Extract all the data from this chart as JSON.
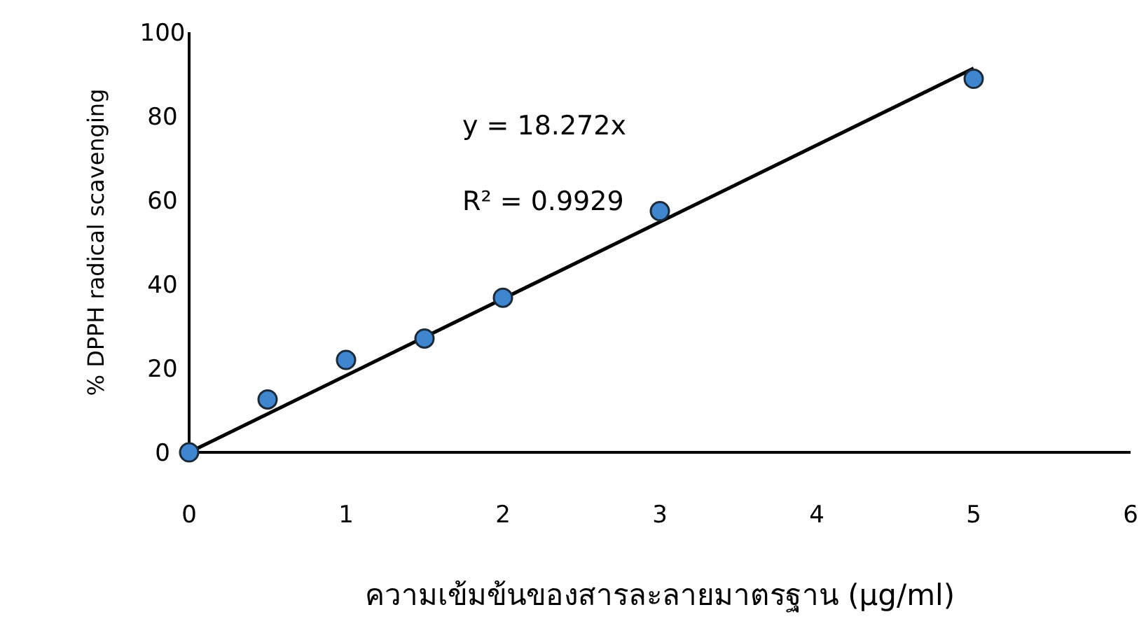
{
  "chart_data": {
    "type": "scatter",
    "xlabel": "ความเข้มข้นของสารละลายมาตรฐาน (µg/ml)",
    "ylabel": "% DPPH radical scavenging",
    "xlim": [
      0,
      6
    ],
    "xticks": [
      0,
      1,
      2,
      3,
      4,
      5,
      6
    ],
    "ylim": [
      0,
      100
    ],
    "yticks": [
      0,
      20,
      40,
      60,
      80,
      100
    ],
    "grid": false,
    "marker": "circle",
    "series": [
      {
        "type": "scatter",
        "color": "#3f86cf",
        "x": [
          0,
          0.5,
          1,
          1.5,
          2,
          3,
          5
        ],
        "values": [
          0,
          12.6,
          22,
          27.1,
          36.8,
          57.4,
          88.9
        ]
      },
      {
        "type": "line",
        "color": "#000000",
        "marker": "none",
        "line_style": "solid",
        "x": [
          0,
          5
        ],
        "values": [
          0,
          91.4
        ]
      }
    ],
    "annotations": [
      "y = 18.272x",
      "R² = 0.9929"
    ]
  }
}
